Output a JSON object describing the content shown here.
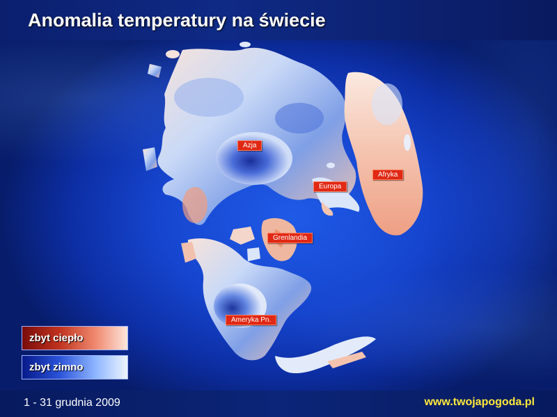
{
  "title": "Anomalia temperatury na świecie",
  "footer": {
    "date_range": "1 - 31 grudnia 2009",
    "website": "www.twojapogoda.pl"
  },
  "labels": {
    "asia": "Azja",
    "africa": "Afryka",
    "europe": "Europa",
    "greenland": "Grenlandia",
    "north_america": "Ameryka Pn."
  },
  "legend": {
    "warm": "zbyt ciepło",
    "cold": "zbyt zimno"
  },
  "colors": {
    "label_bg": "#e02814",
    "warm": "#e06a50",
    "cold": "#1e3fd0",
    "website": "#ffe83a"
  }
}
